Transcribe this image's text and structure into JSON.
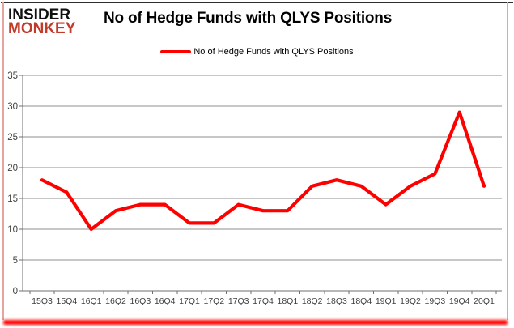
{
  "logo": {
    "line1": "INSIDER",
    "line2": "MONKEY"
  },
  "header": {
    "title": "No of Hedge Funds with QLYS Positions"
  },
  "legend": {
    "label": "No of Hedge Funds with QLYS Positions"
  },
  "colors": {
    "line": "#ff0000",
    "grid": "#8f8f8f",
    "axis": "#6f6f6f",
    "axis_label": "#3f3f3f",
    "title_text": "#000000",
    "logo_red": "#c23a28",
    "frame_side": "#e6a49f",
    "bottom_glow": "#ff0000"
  },
  "chart_data": {
    "type": "line",
    "title": "No of Hedge Funds with QLYS Positions",
    "categories": [
      "15Q3",
      "15Q4",
      "16Q1",
      "16Q2",
      "16Q3",
      "16Q4",
      "17Q1",
      "17Q2",
      "17Q3",
      "17Q4",
      "18Q1",
      "18Q2",
      "18Q3",
      "18Q4",
      "19Q1",
      "19Q2",
      "19Q3",
      "19Q4",
      "20Q1"
    ],
    "series": [
      {
        "name": "No of Hedge Funds with QLYS Positions",
        "values": [
          18,
          16,
          10,
          13,
          14,
          14,
          11,
          11,
          14,
          13,
          13,
          17,
          18,
          17,
          14,
          17,
          19,
          29,
          17
        ]
      }
    ],
    "xlabel": "",
    "ylabel": "",
    "ylim": [
      0,
      35
    ],
    "ytick_step": 5,
    "grid": true,
    "legend_position": "top-center"
  }
}
